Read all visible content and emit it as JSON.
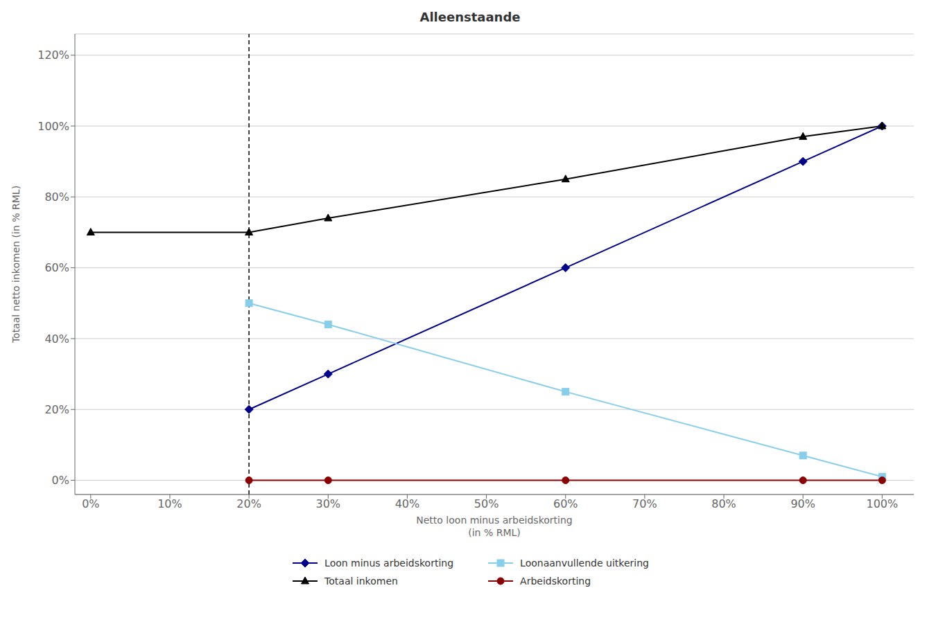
{
  "chart_data": {
    "type": "line",
    "title": "Alleenstaande",
    "xlabel": "Netto loon minus arbeidskorting\n(in % RML)",
    "ylabel": "Totaal netto inkomen (in % RML)",
    "xlim": [
      -2,
      104
    ],
    "ylim": [
      -4,
      126
    ],
    "xticks": [
      {
        "value": 0,
        "label": "0%"
      },
      {
        "value": 10,
        "label": "10%"
      },
      {
        "value": 20,
        "label": "20%"
      },
      {
        "value": 30,
        "label": "30%"
      },
      {
        "value": 40,
        "label": "40%"
      },
      {
        "value": 50,
        "label": "50%"
      },
      {
        "value": 60,
        "label": "60%"
      },
      {
        "value": 70,
        "label": "70%"
      },
      {
        "value": 80,
        "label": "80%"
      },
      {
        "value": 90,
        "label": "90%"
      },
      {
        "value": 100,
        "label": "100%"
      }
    ],
    "yticks": [
      {
        "value": 0,
        "label": "0%"
      },
      {
        "value": 20,
        "label": "20%"
      },
      {
        "value": 40,
        "label": "40%"
      },
      {
        "value": 60,
        "label": "60%"
      },
      {
        "value": 80,
        "label": "80%"
      },
      {
        "value": 100,
        "label": "100%"
      },
      {
        "value": 120,
        "label": "120%"
      }
    ],
    "grid": "y",
    "legend": "bottom",
    "vline": {
      "x": 20,
      "color": "#000000",
      "line_style": "dashed"
    },
    "series": [
      {
        "name": "Loon minus arbeidskorting",
        "color": "#00008B",
        "marker": "diamond",
        "x": [
          20,
          30,
          60,
          90,
          100
        ],
        "values": [
          20,
          30,
          60,
          90,
          100
        ]
      },
      {
        "name": "Loonaanvullende uitkering",
        "color": "#87CEEB",
        "marker": "square",
        "x": [
          20,
          30,
          60,
          90,
          100
        ],
        "values": [
          50,
          44,
          25,
          7,
          1
        ]
      },
      {
        "name": "Totaal inkomen",
        "color": "#000000",
        "marker": "triangle",
        "x": [
          0,
          20,
          30,
          60,
          90,
          100
        ],
        "values": [
          70,
          70,
          74,
          85,
          97,
          100
        ]
      },
      {
        "name": "Arbeidskorting",
        "color": "#8B0000",
        "marker": "circle",
        "x": [
          20,
          30,
          60,
          90,
          100
        ],
        "values": [
          0,
          0,
          0,
          0,
          0
        ]
      }
    ]
  }
}
